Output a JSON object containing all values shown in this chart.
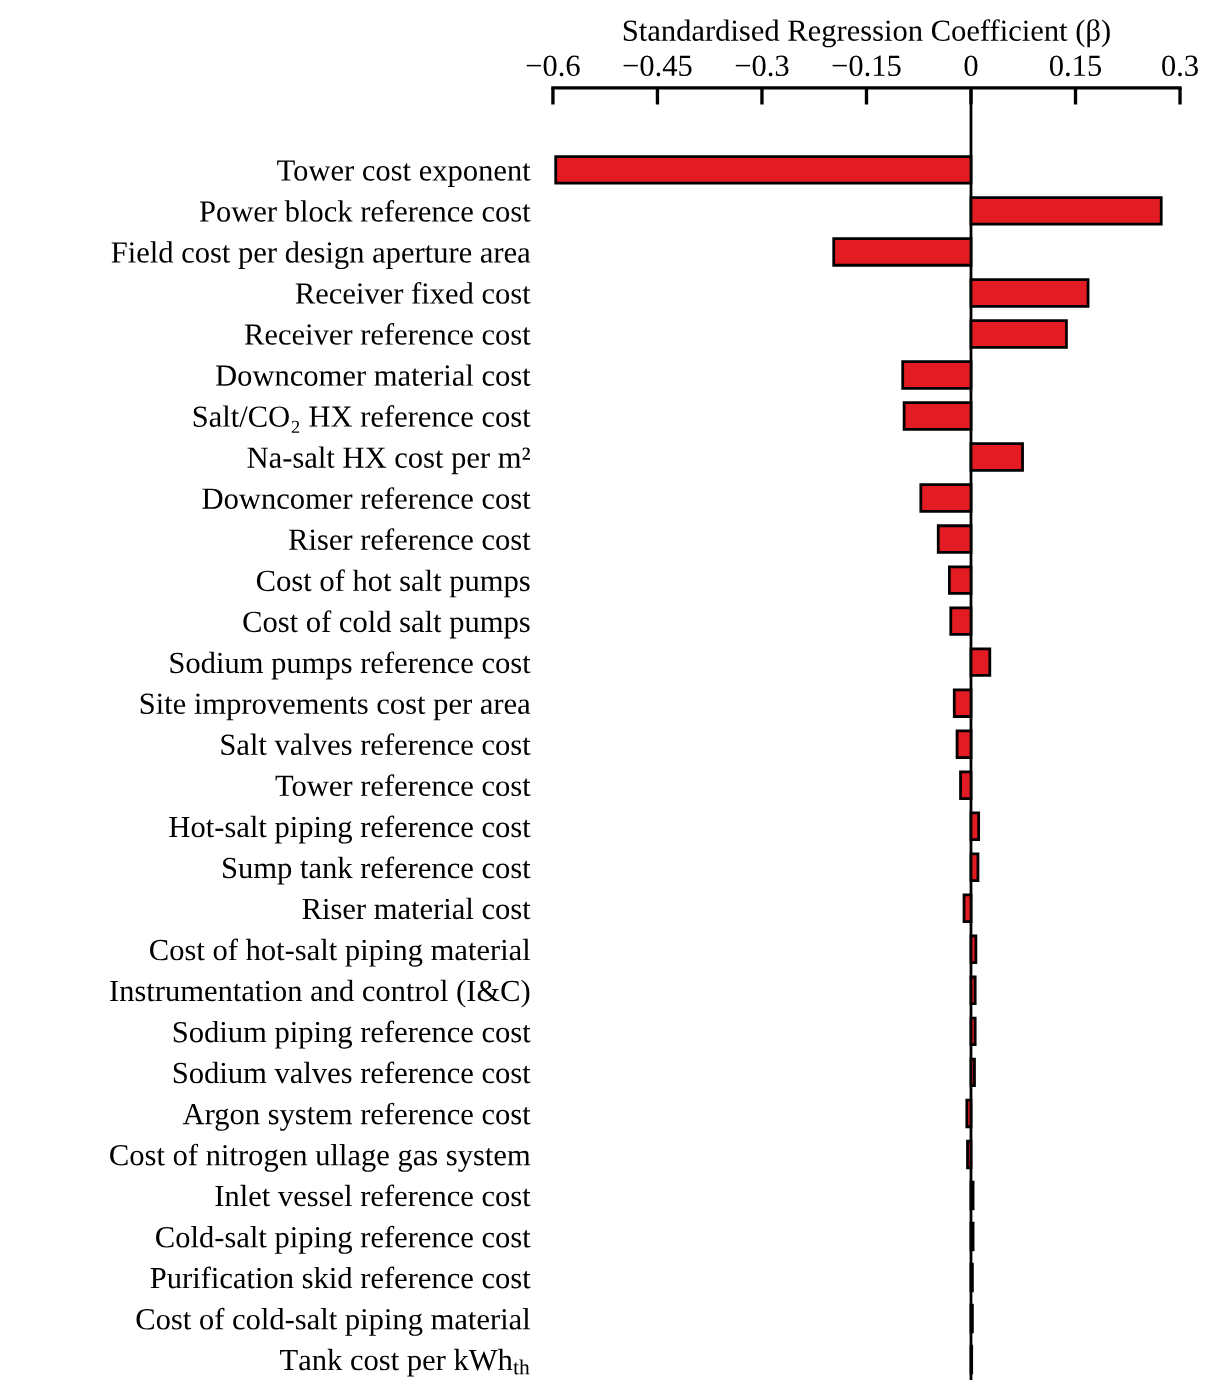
{
  "chart_data": {
    "type": "bar",
    "orientation": "horizontal",
    "xlabel": "Standardised Regression Coefficient (β)",
    "categories": [
      "Tower cost exponent",
      "Power block reference cost",
      "Field cost per design aperture area",
      "Receiver fixed cost",
      "Receiver reference cost",
      "Downcomer material cost",
      "Salt/CO₂ HX reference cost",
      "Na-salt HX cost per m²",
      "Downcomer reference cost",
      "Riser reference cost",
      "Cost of hot salt pumps",
      "Cost of cold salt pumps",
      "Sodium pumps reference cost",
      "Site improvements cost per area",
      "Salt valves reference cost",
      "Tower reference cost",
      "Hot-salt piping reference cost",
      "Sump tank reference cost",
      "Riser material cost",
      "Cost of hot-salt piping material",
      "Instrumentation and control (I&C)",
      "Sodium piping reference cost",
      "Sodium valves reference cost",
      "Argon system reference cost",
      "Cost of nitrogen ullage gas system",
      "Inlet vessel reference cost",
      "Cold-salt piping reference cost",
      "Purification skid reference cost",
      "Cost of cold-salt piping material",
      "Tank cost per kWh$_{th}$"
    ],
    "values": [
      -0.596,
      0.273,
      -0.197,
      0.168,
      0.137,
      -0.098,
      -0.096,
      0.074,
      -0.072,
      -0.047,
      -0.031,
      -0.029,
      0.027,
      -0.024,
      -0.02,
      -0.015,
      0.011,
      0.01,
      -0.01,
      0.007,
      0.006,
      0.006,
      0.005,
      -0.006,
      -0.005,
      0.003,
      0.003,
      0.002,
      0.002,
      0.001
    ],
    "color": "#e31b23",
    "xlim": [
      -0.6,
      0.3
    ],
    "xticks": [
      {
        "value": -0.6,
        "label": "−0.6"
      },
      {
        "value": -0.45,
        "label": "−0.45"
      },
      {
        "value": -0.3,
        "label": "−0.3"
      },
      {
        "value": -0.15,
        "label": "−0.15"
      },
      0,
      0.15,
      0.3
    ],
    "ref_lines": [
      {
        "axis": "x",
        "value": 0,
        "color": "#000000"
      }
    ],
    "grid": false,
    "legend": false
  }
}
